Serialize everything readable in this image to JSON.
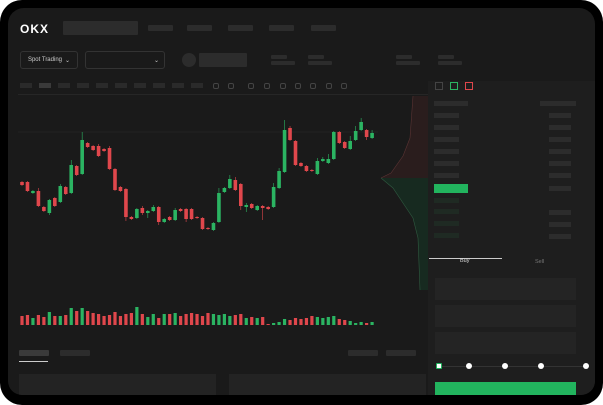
{
  "header": {
    "logo": "OKX"
  },
  "market_selector": {
    "label": "Spot Trading",
    "value": ""
  },
  "trade_tabs": {
    "buy": "Buy",
    "sell": "Sell"
  },
  "colors": {
    "up": "#2bb462",
    "down": "#e0474c",
    "accent": "#22b45e",
    "background": "#1a1a1a"
  },
  "candles": [
    [
      58,
      55,
      59,
      54
    ],
    [
      58,
      49,
      59,
      48
    ],
    [
      47,
      49,
      50,
      46
    ],
    [
      49,
      34,
      52,
      33
    ],
    [
      33,
      29,
      34,
      28
    ],
    [
      27,
      40,
      41,
      25
    ],
    [
      42,
      34,
      43,
      33
    ],
    [
      38,
      54,
      56,
      37
    ],
    [
      53,
      46,
      54,
      45
    ],
    [
      47,
      75,
      80,
      46
    ],
    [
      74,
      65,
      75,
      64
    ],
    [
      66,
      100,
      108,
      65
    ],
    [
      97,
      93,
      98,
      92
    ],
    [
      94,
      90,
      95,
      89
    ],
    [
      94,
      84,
      96,
      83
    ],
    [
      91,
      89,
      92,
      88
    ],
    [
      92,
      71,
      94,
      70
    ],
    [
      71,
      50,
      72,
      49
    ],
    [
      53,
      49,
      54,
      48
    ],
    [
      51,
      23,
      52,
      19
    ],
    [
      23,
      21,
      24,
      20
    ],
    [
      22,
      31,
      32,
      21
    ],
    [
      32,
      27,
      34,
      25
    ],
    [
      27,
      29,
      30,
      22
    ],
    [
      29,
      33,
      35,
      28
    ],
    [
      33,
      18,
      34,
      15
    ],
    [
      18,
      21,
      22,
      17
    ],
    [
      23,
      20,
      24,
      19
    ],
    [
      20,
      30,
      32,
      19
    ],
    [
      31,
      29,
      32,
      28
    ],
    [
      31,
      21,
      32,
      18
    ],
    [
      31,
      21,
      32,
      20
    ],
    [
      23,
      22,
      24,
      21
    ],
    [
      22,
      11,
      23,
      10
    ],
    [
      12,
      11,
      13,
      10
    ],
    [
      10,
      17,
      18,
      9
    ],
    [
      18,
      47,
      52,
      17
    ],
    [
      48,
      52,
      53,
      47
    ],
    [
      52,
      61,
      65,
      51
    ],
    [
      60,
      50,
      63,
      49
    ],
    [
      56,
      34,
      57,
      30
    ],
    [
      33,
      35,
      37,
      28
    ],
    [
      36,
      32,
      37,
      31
    ],
    [
      30,
      34,
      35,
      29
    ],
    [
      34,
      32,
      35,
      20
    ],
    [
      33,
      31,
      34,
      30
    ],
    [
      33,
      53,
      57,
      32
    ],
    [
      52,
      69,
      72,
      51
    ],
    [
      68,
      110,
      120,
      67
    ],
    [
      112,
      100,
      114,
      99
    ],
    [
      99,
      75,
      100,
      74
    ],
    [
      77,
      74,
      78,
      73
    ],
    [
      74,
      69,
      75,
      68
    ],
    [
      70,
      69,
      71,
      68
    ],
    [
      66,
      79,
      82,
      65
    ],
    [
      79,
      81,
      83,
      78
    ],
    [
      77,
      81,
      86,
      76
    ],
    [
      81,
      108,
      109,
      80
    ],
    [
      108,
      97,
      109,
      96
    ],
    [
      98,
      92,
      99,
      91
    ],
    [
      91,
      99,
      104,
      90
    ],
    [
      100,
      109,
      114,
      99
    ],
    [
      110,
      118,
      122,
      109
    ],
    [
      110,
      103,
      111,
      100
    ],
    [
      102,
      107,
      110,
      101
    ]
  ],
  "volumes": [
    9,
    10,
    7,
    10,
    8,
    13,
    9,
    9,
    10,
    17,
    14,
    17,
    14,
    12,
    11,
    9,
    10,
    13,
    9,
    11,
    12,
    18,
    11,
    8,
    11,
    7,
    11,
    11,
    12,
    9,
    11,
    12,
    11,
    9,
    12,
    11,
    10,
    11,
    9,
    10,
    11,
    7,
    8,
    7,
    8,
    1,
    2,
    3,
    6,
    5,
    7,
    6,
    7,
    9,
    8,
    7,
    8,
    9,
    6,
    5,
    4,
    2,
    3,
    2,
    3
  ],
  "leverage_slider": {
    "value": 0,
    "marks": 5
  }
}
